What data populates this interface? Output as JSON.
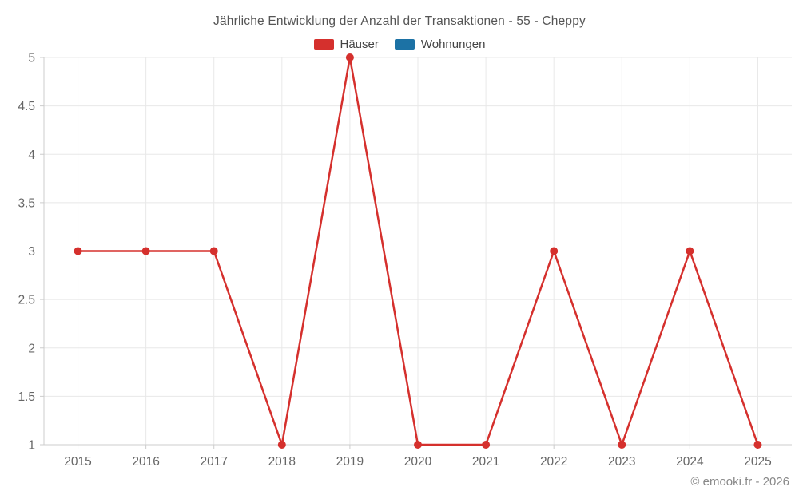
{
  "chart_data": {
    "type": "line",
    "title": "Jährliche Entwicklung der Anzahl der Transaktionen - 55 - Cheppy",
    "categories": [
      "2015",
      "2016",
      "2017",
      "2018",
      "2019",
      "2020",
      "2021",
      "2022",
      "2023",
      "2024",
      "2025"
    ],
    "series": [
      {
        "name": "Häuser",
        "color": "#d5302d",
        "values": [
          3,
          3,
          3,
          1,
          5,
          1,
          1,
          3,
          1,
          3,
          1
        ]
      },
      {
        "name": "Wohnungen",
        "color": "#1c72a5",
        "values": []
      }
    ],
    "xlabel": "",
    "ylabel": "",
    "ylim": [
      1,
      5
    ],
    "ytick_step": 0.5,
    "ytick_labels": [
      "1",
      "1.5",
      "2",
      "2.5",
      "3",
      "3.5",
      "4",
      "4.5",
      "5"
    ],
    "grid": true,
    "legend_position": "top",
    "colors": {
      "grid": "#e8e8e8",
      "axis": "#cccccc",
      "tick_label": "#666666",
      "title": "#555555",
      "legend_label": "#444444",
      "watermark": "#888888"
    },
    "watermark": "© emooki.fr - 2026"
  }
}
